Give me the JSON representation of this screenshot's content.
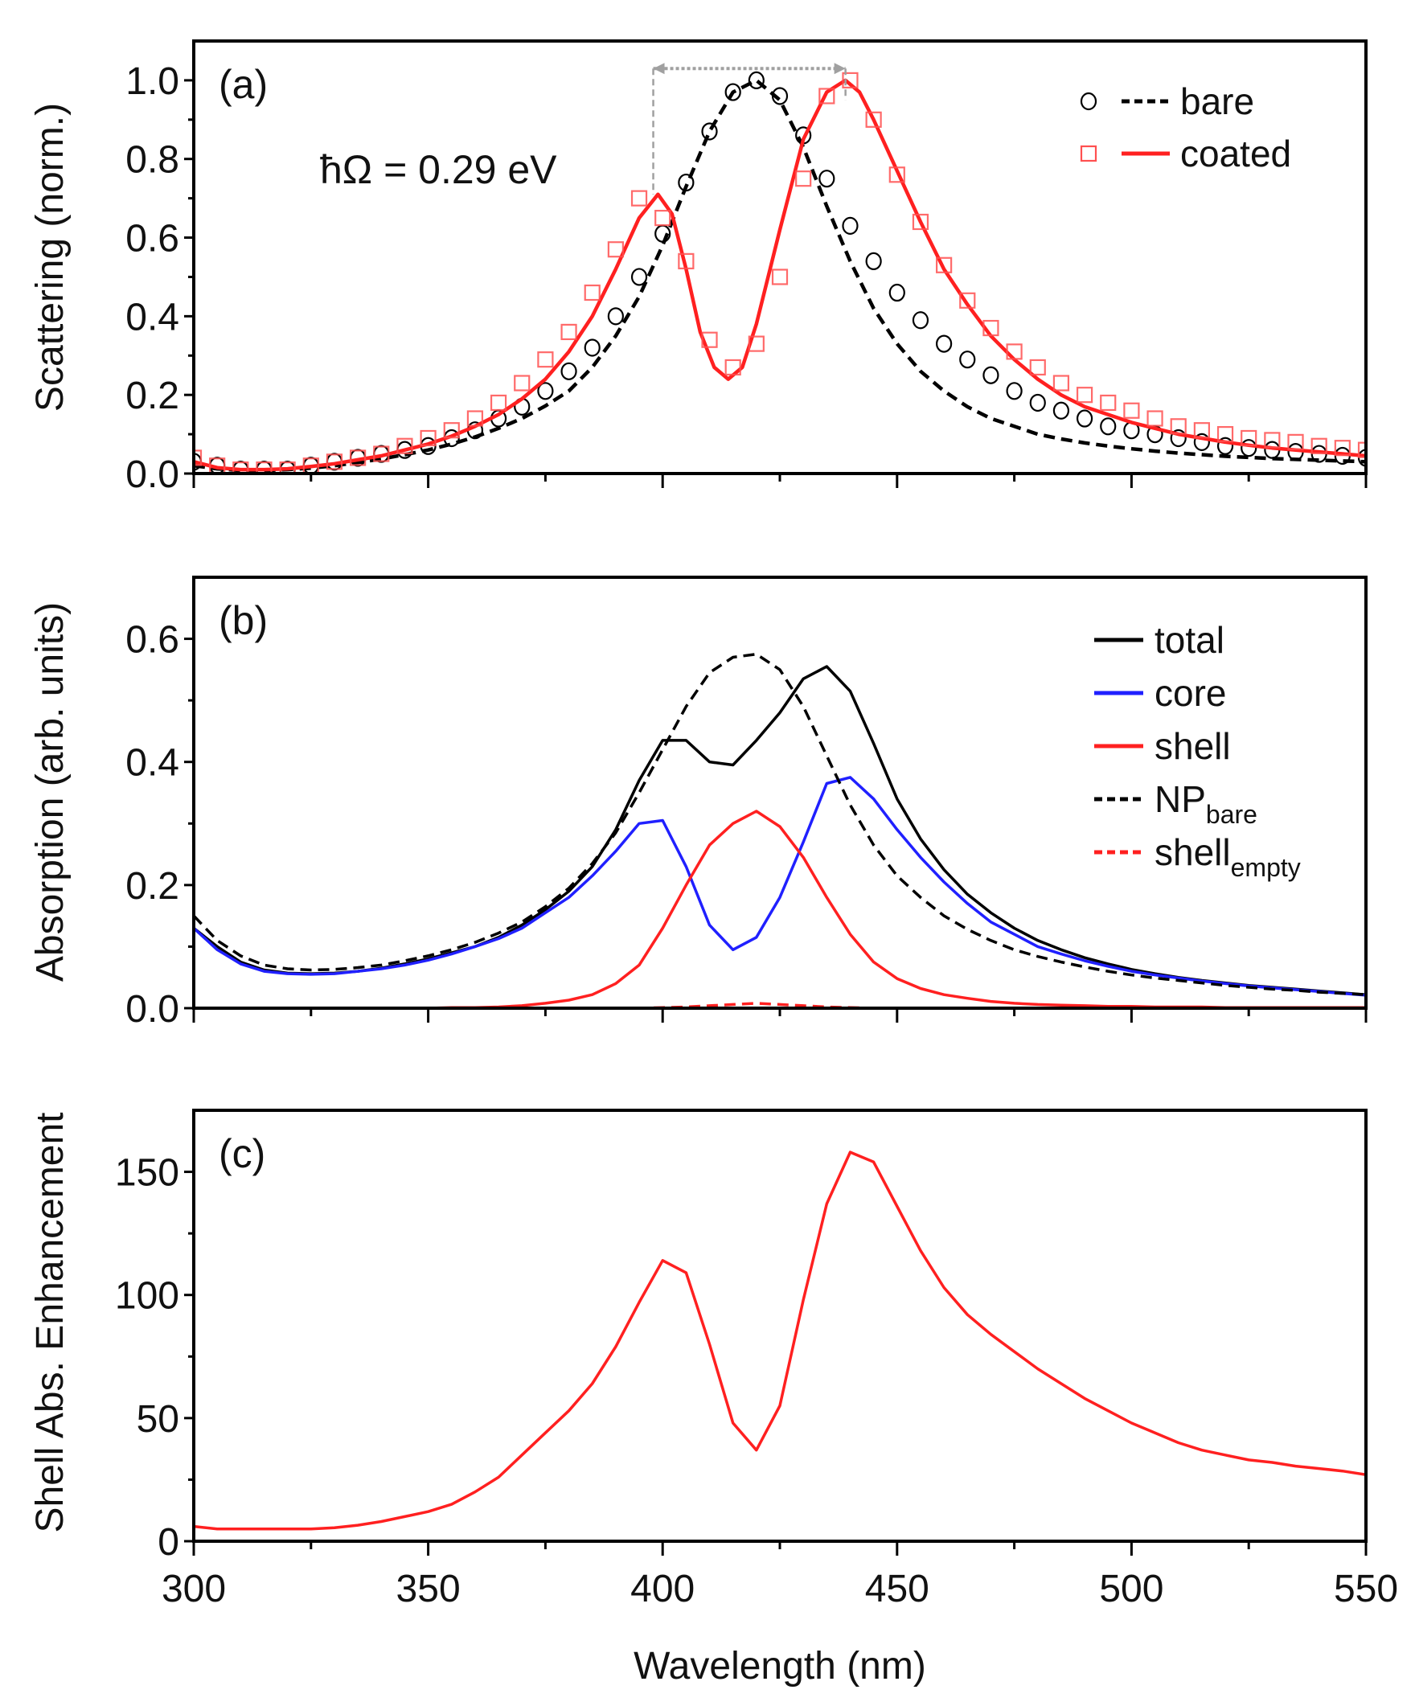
{
  "chart_data": [
    {
      "panel": "(a)",
      "type": "line+scatter",
      "ylabel": "Scattering (norm.)",
      "xlim": [
        300,
        550
      ],
      "ylim": [
        0,
        1.1
      ],
      "yticks": [
        0,
        0.2,
        0.4,
        0.6,
        0.8,
        1.0
      ],
      "ytick_labels": [
        "0.0",
        "0.2",
        "0.4",
        "0.6",
        "0.8",
        "1.0"
      ],
      "annotation": {
        "text": "ħΩ = 0.29 eV",
        "arrow_from_nm": 398,
        "arrow_to_nm": 439,
        "arrow_level": 1.03,
        "left_base": 0.71,
        "right_base": 0.95,
        "color": "#a0a0a0"
      },
      "legend_position": "top-right",
      "series": [
        {
          "name": "bare",
          "style": "dashed",
          "marker": "circle",
          "color": "#000000",
          "line_x": [
            300,
            305,
            310,
            315,
            320,
            325,
            330,
            335,
            340,
            345,
            350,
            355,
            360,
            365,
            370,
            375,
            380,
            385,
            390,
            395,
            400,
            405,
            410,
            415,
            420,
            425,
            430,
            435,
            440,
            445,
            450,
            455,
            460,
            465,
            470,
            475,
            480,
            485,
            490,
            495,
            500,
            505,
            510,
            515,
            520,
            525,
            530,
            535,
            540,
            545,
            550
          ],
          "line_y": [
            0.02,
            0.012,
            0.008,
            0.008,
            0.01,
            0.014,
            0.02,
            0.028,
            0.037,
            0.048,
            0.06,
            0.075,
            0.093,
            0.115,
            0.14,
            0.172,
            0.21,
            0.27,
            0.35,
            0.45,
            0.58,
            0.73,
            0.87,
            0.97,
            1.0,
            0.95,
            0.83,
            0.68,
            0.54,
            0.42,
            0.33,
            0.26,
            0.21,
            0.17,
            0.14,
            0.12,
            0.1,
            0.088,
            0.078,
            0.07,
            0.063,
            0.057,
            0.052,
            0.048,
            0.044,
            0.041,
            0.038,
            0.036,
            0.034,
            0.032,
            0.03
          ],
          "marker_x": [
            300,
            305,
            310,
            315,
            320,
            325,
            330,
            335,
            340,
            345,
            350,
            355,
            360,
            365,
            370,
            375,
            380,
            385,
            390,
            395,
            400,
            405,
            410,
            415,
            420,
            425,
            430,
            435,
            440,
            445,
            450,
            455,
            460,
            465,
            470,
            475,
            480,
            485,
            490,
            495,
            500,
            505,
            510,
            515,
            520,
            525,
            530,
            535,
            540,
            545,
            550
          ],
          "marker_y": [
            0.03,
            0.02,
            0.01,
            0.01,
            0.01,
            0.02,
            0.03,
            0.04,
            0.05,
            0.06,
            0.07,
            0.09,
            0.11,
            0.14,
            0.17,
            0.21,
            0.26,
            0.32,
            0.4,
            0.5,
            0.61,
            0.74,
            0.87,
            0.97,
            1.0,
            0.96,
            0.86,
            0.75,
            0.63,
            0.54,
            0.46,
            0.39,
            0.33,
            0.29,
            0.25,
            0.21,
            0.18,
            0.16,
            0.14,
            0.12,
            0.11,
            0.1,
            0.09,
            0.08,
            0.07,
            0.065,
            0.06,
            0.055,
            0.05,
            0.045,
            0.04
          ]
        },
        {
          "name": "coated",
          "style": "solid",
          "marker": "square",
          "color": "#ff2020",
          "line_x": [
            300,
            305,
            310,
            315,
            320,
            325,
            330,
            335,
            340,
            345,
            350,
            355,
            360,
            365,
            370,
            375,
            380,
            385,
            390,
            395,
            399,
            402,
            405,
            408,
            411,
            414,
            417,
            420,
            425,
            430,
            435,
            439,
            442,
            445,
            450,
            455,
            460,
            465,
            470,
            475,
            480,
            485,
            490,
            495,
            500,
            505,
            510,
            515,
            520,
            525,
            530,
            535,
            540,
            545,
            550
          ],
          "line_y": [
            0.03,
            0.015,
            0.01,
            0.01,
            0.012,
            0.018,
            0.025,
            0.035,
            0.045,
            0.06,
            0.075,
            0.095,
            0.12,
            0.15,
            0.19,
            0.24,
            0.31,
            0.4,
            0.52,
            0.65,
            0.71,
            0.66,
            0.52,
            0.36,
            0.27,
            0.24,
            0.27,
            0.38,
            0.62,
            0.85,
            0.97,
            1.0,
            0.97,
            0.9,
            0.77,
            0.64,
            0.52,
            0.43,
            0.35,
            0.29,
            0.24,
            0.2,
            0.17,
            0.15,
            0.13,
            0.115,
            0.1,
            0.09,
            0.08,
            0.072,
            0.065,
            0.06,
            0.055,
            0.05,
            0.045
          ],
          "marker_x": [
            300,
            305,
            310,
            315,
            320,
            325,
            330,
            335,
            340,
            345,
            350,
            355,
            360,
            365,
            370,
            375,
            380,
            385,
            390,
            395,
            400,
            405,
            410,
            415,
            420,
            425,
            430,
            435,
            440,
            445,
            450,
            455,
            460,
            465,
            470,
            475,
            480,
            485,
            490,
            495,
            500,
            505,
            510,
            515,
            520,
            525,
            530,
            535,
            540,
            545,
            550
          ],
          "marker_y": [
            0.04,
            0.02,
            0.01,
            0.01,
            0.01,
            0.02,
            0.03,
            0.04,
            0.05,
            0.07,
            0.09,
            0.11,
            0.14,
            0.18,
            0.23,
            0.29,
            0.36,
            0.46,
            0.57,
            0.7,
            0.65,
            0.54,
            0.34,
            0.27,
            0.33,
            0.5,
            0.75,
            0.96,
            1.0,
            0.9,
            0.76,
            0.64,
            0.53,
            0.44,
            0.37,
            0.31,
            0.27,
            0.23,
            0.2,
            0.18,
            0.16,
            0.14,
            0.12,
            0.11,
            0.1,
            0.09,
            0.085,
            0.08,
            0.07,
            0.065,
            0.06
          ]
        }
      ]
    },
    {
      "panel": "(b)",
      "type": "line",
      "ylabel": "Absorption (arb. units)",
      "xlim": [
        300,
        550
      ],
      "ylim": [
        0,
        0.7
      ],
      "yticks": [
        0,
        0.2,
        0.4,
        0.6
      ],
      "ytick_labels": [
        "0.0",
        "0.2",
        "0.4",
        "0.6"
      ],
      "legend_position": "top-right",
      "x": [
        300,
        305,
        310,
        315,
        320,
        325,
        330,
        335,
        340,
        345,
        350,
        355,
        360,
        365,
        370,
        375,
        380,
        385,
        390,
        395,
        400,
        405,
        410,
        415,
        420,
        425,
        430,
        435,
        440,
        445,
        450,
        455,
        460,
        465,
        470,
        475,
        480,
        485,
        490,
        495,
        500,
        505,
        510,
        515,
        520,
        525,
        530,
        535,
        540,
        545,
        550
      ],
      "series": [
        {
          "name": "total",
          "style": "solid",
          "color": "#000000",
          "values": [
            0.13,
            0.1,
            0.075,
            0.062,
            0.057,
            0.056,
            0.057,
            0.06,
            0.065,
            0.072,
            0.08,
            0.09,
            0.1,
            0.115,
            0.135,
            0.16,
            0.19,
            0.23,
            0.29,
            0.37,
            0.435,
            0.435,
            0.4,
            0.395,
            0.435,
            0.48,
            0.535,
            0.555,
            0.515,
            0.43,
            0.34,
            0.275,
            0.225,
            0.185,
            0.155,
            0.13,
            0.11,
            0.095,
            0.082,
            0.072,
            0.063,
            0.056,
            0.05,
            0.045,
            0.041,
            0.037,
            0.034,
            0.031,
            0.028,
            0.025,
            0.022
          ]
        },
        {
          "name": "core",
          "style": "solid",
          "color": "#2020ff",
          "values": [
            0.13,
            0.095,
            0.072,
            0.06,
            0.056,
            0.055,
            0.056,
            0.06,
            0.064,
            0.07,
            0.078,
            0.088,
            0.1,
            0.113,
            0.13,
            0.155,
            0.18,
            0.215,
            0.255,
            0.3,
            0.305,
            0.23,
            0.135,
            0.095,
            0.115,
            0.18,
            0.27,
            0.365,
            0.375,
            0.34,
            0.29,
            0.245,
            0.205,
            0.17,
            0.14,
            0.12,
            0.1,
            0.088,
            0.077,
            0.068,
            0.06,
            0.054,
            0.049,
            0.044,
            0.04,
            0.036,
            0.033,
            0.03,
            0.027,
            0.024,
            0.021
          ]
        },
        {
          "name": "shell",
          "style": "solid",
          "color": "#ff2020",
          "values": [
            0,
            0,
            0,
            0,
            0,
            0,
            0,
            0,
            0,
            0,
            0,
            0.001,
            0.001,
            0.002,
            0.004,
            0.008,
            0.013,
            0.022,
            0.04,
            0.07,
            0.13,
            0.2,
            0.265,
            0.3,
            0.32,
            0.295,
            0.245,
            0.18,
            0.12,
            0.075,
            0.048,
            0.032,
            0.022,
            0.016,
            0.011,
            0.008,
            0.006,
            0.005,
            0.004,
            0.003,
            0.003,
            0.002,
            0.002,
            0.002,
            0.001,
            0.001,
            0.001,
            0.001,
            0.001,
            0.001,
            0.001
          ]
        },
        {
          "name": "NP",
          "name_sub": "bare",
          "style": "dashed",
          "color": "#000000",
          "values": [
            0.15,
            0.11,
            0.085,
            0.07,
            0.064,
            0.062,
            0.063,
            0.066,
            0.07,
            0.077,
            0.085,
            0.095,
            0.107,
            0.122,
            0.14,
            0.165,
            0.195,
            0.235,
            0.285,
            0.35,
            0.42,
            0.49,
            0.545,
            0.57,
            0.575,
            0.55,
            0.49,
            0.41,
            0.33,
            0.265,
            0.215,
            0.18,
            0.15,
            0.128,
            0.11,
            0.095,
            0.084,
            0.075,
            0.067,
            0.06,
            0.054,
            0.049,
            0.045,
            0.041,
            0.037,
            0.034,
            0.031,
            0.029,
            0.026,
            0.024,
            0.022
          ]
        },
        {
          "name": "shell",
          "name_sub": "empty",
          "style": "dashed",
          "color": "#ff2020",
          "values": [
            0,
            0,
            0,
            0,
            0,
            0,
            0,
            0,
            0,
            0,
            0,
            0,
            0,
            0,
            0,
            0,
            0,
            0,
            0,
            0,
            0.001,
            0.002,
            0.004,
            0.006,
            0.008,
            0.006,
            0.004,
            0.002,
            0.001,
            0,
            0,
            0,
            0,
            0,
            0,
            0,
            0,
            0,
            0,
            0,
            0,
            0,
            0,
            0,
            0,
            0,
            0,
            0,
            0,
            0,
            0
          ]
        }
      ]
    },
    {
      "panel": "(c)",
      "type": "line",
      "ylabel": "Shell Abs. Enhancement",
      "xlabel": "Wavelength (nm)",
      "xlim": [
        300,
        550
      ],
      "ylim": [
        0,
        175
      ],
      "xticks": [
        300,
        350,
        400,
        450,
        500,
        550
      ],
      "xtick_labels": [
        "300",
        "350",
        "400",
        "450",
        "500",
        "550"
      ],
      "yticks": [
        0,
        50,
        100,
        150
      ],
      "ytick_labels": [
        "0",
        "50",
        "100",
        "150"
      ],
      "x": [
        300,
        305,
        310,
        315,
        320,
        325,
        330,
        335,
        340,
        345,
        350,
        355,
        360,
        365,
        370,
        375,
        380,
        385,
        390,
        395,
        400,
        405,
        410,
        415,
        420,
        425,
        430,
        435,
        440,
        445,
        450,
        455,
        460,
        465,
        470,
        475,
        480,
        485,
        490,
        495,
        500,
        505,
        510,
        515,
        520,
        525,
        530,
        535,
        540,
        545,
        550
      ],
      "series": [
        {
          "name": "enhancement",
          "style": "solid",
          "color": "#ff2020",
          "values": [
            6,
            5,
            5,
            5,
            5,
            5,
            5.5,
            6.5,
            8,
            10,
            12,
            15,
            20,
            26,
            35,
            44,
            53,
            64,
            79,
            97,
            114,
            109,
            80,
            48,
            37,
            55,
            98,
            137,
            158,
            154,
            136,
            118,
            103,
            92,
            84,
            77,
            70,
            64,
            58,
            53,
            48,
            44,
            40,
            37,
            35,
            33,
            32,
            30.5,
            29.5,
            28.5,
            27
          ]
        }
      ]
    }
  ]
}
